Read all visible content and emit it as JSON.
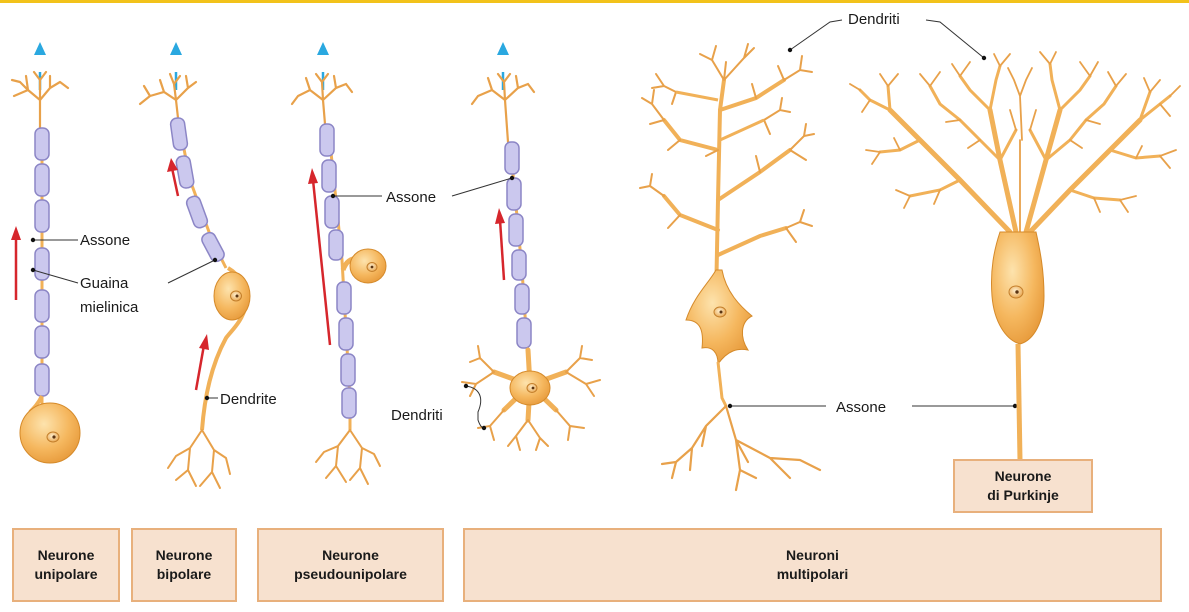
{
  "labels": {
    "assone": "Assone",
    "guaina": "Guaina\nmielinica",
    "dendrite": "Dendrite",
    "dendriti": "Dendriti"
  },
  "categories": {
    "unipolar": "Neurone\nunipolare",
    "bipolar": "Neurone\nbipolare",
    "pseudounipolar": "Neurone\npseudounipolare",
    "multipolar": "Neuroni\nmultipolari",
    "purkinje": "Neurone\ndi Purkinje"
  },
  "colors": {
    "neuron_fill": "#f3b45c",
    "neuron_stroke": "#d58a2a",
    "myelin_fill": "#c9c7ec",
    "myelin_stroke": "#8d88c6",
    "arrow_red": "#d6262c",
    "arrow_blue": "#2aa8e0",
    "box_fill": "#f7e1cf",
    "box_border": "#e8b07c"
  }
}
